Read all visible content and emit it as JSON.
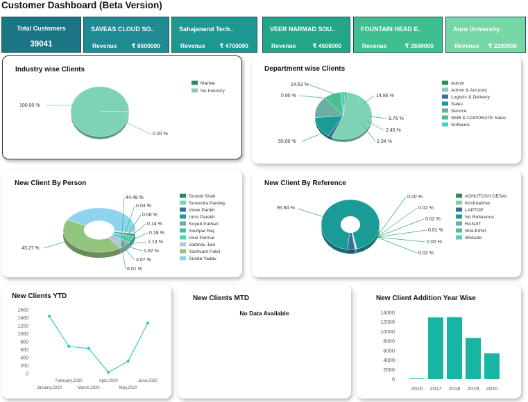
{
  "title": "Customer Dashboard (Beta Version)",
  "kpi": {
    "total": {
      "label": "Total Customers",
      "value": "39041"
    },
    "cards": [
      {
        "name": "SAVEAS CLOUD SO..",
        "rev_label": "Revenue",
        "amount": "₹ 8500000",
        "color": "#1e8a91"
      },
      {
        "name": "Sahajanand Tech..",
        "rev_label": "Revenue",
        "amount": "₹ 4700000",
        "color": "#1f9791"
      },
      {
        "name": "VEER NARMAD SOU..",
        "rev_label": "Revenue",
        "amount": "₹ 4500000",
        "color": "#22a687"
      },
      {
        "name": "FOUNTAIN HEAD E..",
        "rev_label": "Revenue",
        "amount": "₹ 3500000",
        "color": "#3fbf90"
      },
      {
        "name": "Auro University..",
        "rev_label": "Revenue",
        "amount": "₹ 2200000",
        "color": "#76d6a6"
      }
    ],
    "total_color": "#1b7584"
  },
  "panels": {
    "industry": {
      "title": "Industry wise Clients"
    },
    "department": {
      "title": "Department wise Clients"
    },
    "person": {
      "title": "New Client By Person"
    },
    "reference": {
      "title": "New Client By Reference"
    },
    "ytd": {
      "title": "New Clients YTD"
    },
    "mtd": {
      "title": "New Clients MTD",
      "message": "No Data Available"
    },
    "yearwise": {
      "title": "New Client Addition Year Wise"
    }
  },
  "chart_data": [
    {
      "id": "industry",
      "type": "pie",
      "categories": [
        "Marble",
        "No Industry"
      ],
      "values": [
        0.0,
        100.0
      ],
      "data_labels": [
        "0.00 %",
        "100.00 %"
      ],
      "colors": [
        "#2e8b57",
        "#7fd3b5"
      ],
      "legend": "right"
    },
    {
      "id": "department",
      "type": "pie",
      "categories": [
        "Admin",
        "Admin & Account",
        "Logistic & Delivery",
        "Sales",
        "Service",
        "SMB & COPORATE Sales",
        "Software"
      ],
      "values": [
        0.95,
        55.0,
        2.34,
        14.63,
        14.86,
        9.76,
        2.45
      ],
      "data_labels": [
        "0.95 %",
        "55.00 %",
        "2.34 %",
        "14.63 %",
        "14.86 %",
        "9.76 %",
        "2.45 %"
      ],
      "colors": [
        "#2e8b57",
        "#7fd3b5",
        "#3a6f9a",
        "#1a9b98",
        "#6aaea4",
        "#48c08f",
        "#4fd0c6"
      ],
      "legend": "right"
    },
    {
      "id": "person",
      "type": "pie",
      "categories": [
        "Soumil Shah",
        "Surendra Pandey",
        "Vivek Parikh",
        "Urmi Parekh",
        "Soyeb Pathan",
        "Yashpal Raj",
        "Viral Parmar",
        "Vaibhav Jain",
        "Yashvant Patel",
        "Sunita Yadav"
      ],
      "values": [
        0.06,
        0.14,
        0.18,
        1.62,
        0.04,
        1.13,
        3.07,
        6.01,
        43.27,
        44.48
      ],
      "data_labels": [
        "0.06 %",
        "0.14 %",
        "0.18 %",
        "1.62 %",
        "0.04 %",
        "1.13 %",
        "3.07 %",
        "6.01 %",
        "43.27 %",
        "44.48 %"
      ],
      "colors": [
        "#2e8b57",
        "#7fd3b5",
        "#3a6f9a",
        "#1a9b98",
        "#6aaea4",
        "#48c08f",
        "#4fd0c6",
        "#b9c4dc",
        "#93c47d",
        "#8fd3ee"
      ],
      "legend": "right"
    },
    {
      "id": "reference",
      "type": "pie",
      "categories": [
        "ASHUTOSH DESAI",
        "Krishnabhai",
        "LAPTOP",
        "No Reference",
        "RANJIT",
        "WALKING",
        "Website"
      ],
      "values": [
        0.0,
        0.02,
        3.98,
        95.94,
        0.02,
        0.01,
        0.02
      ],
      "data_labels": [
        "0.00 %",
        "0.02 %",
        "",
        "95.94 %",
        "0.02 %",
        "0.01 %",
        "0.02 %"
      ],
      "extra_label": "0.00 %",
      "colors": [
        "#2e8b57",
        "#7fd3b5",
        "#3a6f9a",
        "#1a9b98",
        "#6aaea4",
        "#48c08f",
        "#4fd0c6"
      ],
      "legend": "right"
    },
    {
      "id": "ytd",
      "type": "line",
      "x": [
        "January,2020",
        "February,2020",
        "March,2020",
        "April,2020",
        "May,2020",
        "June,2020"
      ],
      "values": [
        1440,
        680,
        630,
        30,
        310,
        1270
      ],
      "yticks": [
        0,
        200,
        400,
        600,
        800,
        1000,
        1200,
        1400,
        1600
      ],
      "ylim": [
        0,
        1600
      ],
      "color": "#2bc4b8"
    },
    {
      "id": "yearwise",
      "type": "bar",
      "categories": [
        "2016",
        "2017",
        "2018",
        "2019",
        "2020"
      ],
      "values": [
        150,
        13000,
        13050,
        8650,
        5450
      ],
      "yticks": [
        0,
        2000,
        4000,
        6000,
        8000,
        10000,
        12000,
        14000
      ],
      "ylim": [
        0,
        14000
      ],
      "color": "#18b5a5"
    }
  ]
}
